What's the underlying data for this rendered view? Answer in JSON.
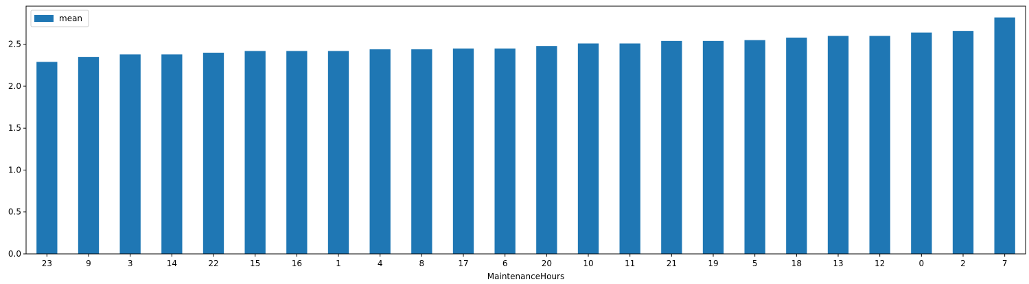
{
  "chart_data": {
    "type": "bar",
    "categories": [
      "23",
      "9",
      "3",
      "14",
      "22",
      "15",
      "16",
      "1",
      "4",
      "8",
      "17",
      "6",
      "20",
      "10",
      "11",
      "21",
      "19",
      "5",
      "18",
      "13",
      "12",
      "0",
      "2",
      "7"
    ],
    "series": [
      {
        "name": "mean",
        "values": [
          2.29,
          2.35,
          2.38,
          2.38,
          2.4,
          2.42,
          2.42,
          2.42,
          2.44,
          2.44,
          2.45,
          2.45,
          2.48,
          2.51,
          2.51,
          2.54,
          2.54,
          2.55,
          2.58,
          2.6,
          2.6,
          2.64,
          2.66,
          2.82
        ],
        "color": "#1f77b4"
      }
    ],
    "xlabel": "MaintenanceHours",
    "ylabel": "",
    "ylim": [
      0,
      2.955
    ],
    "yticks": [
      0.0,
      0.5,
      1.0,
      1.5,
      2.0,
      2.5
    ],
    "ytick_labels": [
      "0.0",
      "0.5",
      "1.0",
      "1.5",
      "2.0",
      "2.5"
    ],
    "legend": {
      "entries": [
        "mean"
      ],
      "position": "top-left"
    },
    "grid": false
  }
}
